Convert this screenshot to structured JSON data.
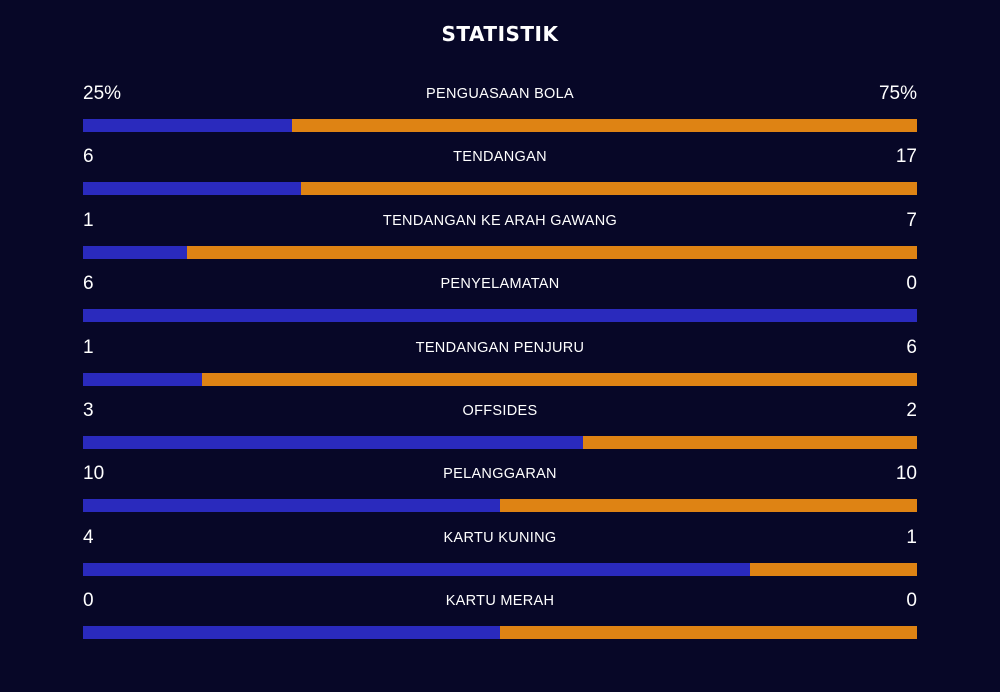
{
  "title": "STATISTIK",
  "colors": {
    "background": "#070727",
    "home": "#2a2abd",
    "away": "#de8314",
    "text": "#ffffff"
  },
  "stats": [
    {
      "label": "PENGUASAAN BOLA",
      "left": "25%",
      "right": "75%",
      "home_share": 0.25
    },
    {
      "label": "TENDANGAN",
      "left": "6",
      "right": "17",
      "home_share": 0.261
    },
    {
      "label": "TENDANGAN KE ARAH GAWANG",
      "left": "1",
      "right": "7",
      "home_share": 0.125
    },
    {
      "label": "PENYELAMATAN",
      "left": "6",
      "right": "0",
      "home_share": 1.0
    },
    {
      "label": "TENDANGAN PENJURU",
      "left": "1",
      "right": "6",
      "home_share": 0.143
    },
    {
      "label": "OFFSIDES",
      "left": "3",
      "right": "2",
      "home_share": 0.6
    },
    {
      "label": "PELANGGARAN",
      "left": "10",
      "right": "10",
      "home_share": 0.5
    },
    {
      "label": "KARTU KUNING",
      "left": "4",
      "right": "1",
      "home_share": 0.8
    },
    {
      "label": "KARTU MERAH",
      "left": "0",
      "right": "0",
      "home_share": 0.5
    }
  ]
}
